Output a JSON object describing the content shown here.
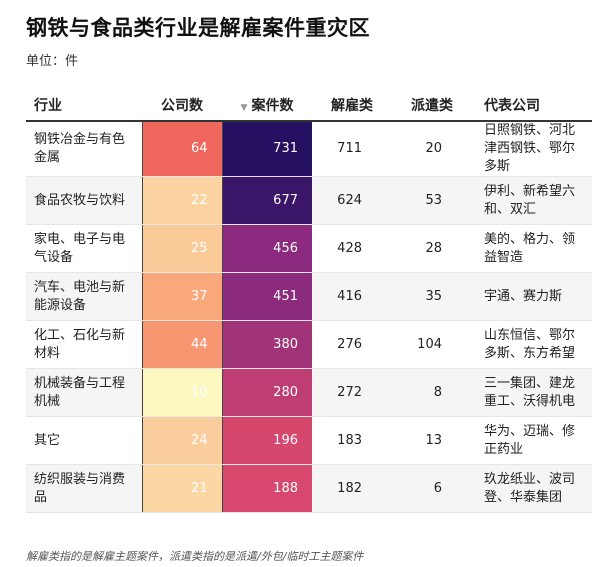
{
  "title": "钢铁与食品类行业是解雇案件重灾区",
  "subtitle": "单位：件",
  "footnote": "解雇类指的是解雇主题案件，派遣类指的是派遣/外包/临时工主题案件",
  "headers": {
    "industry": "行业",
    "companies": "公司数",
    "cases": "案件数",
    "dismissal": "解雇类",
    "dispatch": "派遣类",
    "rep": "代表公司",
    "sort_icon": "sort-down-icon"
  },
  "chart_data": {
    "type": "table",
    "title": "钢铁与食品类行业是解雇案件重灾区",
    "columns": [
      "行业",
      "公司数",
      "案件数",
      "解雇类",
      "派遣类",
      "代表公司"
    ],
    "sorted_by": "案件数",
    "sort_order": "descending",
    "rows": [
      {
        "industry": "钢铁冶金与有色金属",
        "companies": 64,
        "cases": 731,
        "dismissal": 711,
        "dispatch": 20,
        "rep": "日照钢铁、河北津西钢铁、鄂尔多斯"
      },
      {
        "industry": "食品农牧与饮料",
        "companies": 22,
        "cases": 677,
        "dismissal": 624,
        "dispatch": 53,
        "rep": "伊利、新希望六和、双汇"
      },
      {
        "industry": "家电、电子与电气设备",
        "companies": 25,
        "cases": 456,
        "dismissal": 428,
        "dispatch": 28,
        "rep": "美的、格力、领益智造"
      },
      {
        "industry": "汽车、电池与新能源设备",
        "companies": 37,
        "cases": 451,
        "dismissal": 416,
        "dispatch": 35,
        "rep": "宇通、赛力斯"
      },
      {
        "industry": "化工、石化与新材料",
        "companies": 44,
        "cases": 380,
        "dismissal": 276,
        "dispatch": 104,
        "rep": "山东恒信、鄂尔多斯、东方希望"
      },
      {
        "industry": "机械装备与工程机械",
        "companies": 10,
        "cases": 280,
        "dismissal": 272,
        "dispatch": 8,
        "rep": "三一集团、建龙重工、沃得机电"
      },
      {
        "industry": "其它",
        "companies": 24,
        "cases": 196,
        "dismissal": 183,
        "dispatch": 13,
        "rep": "华为、迈瑞、修正药业"
      },
      {
        "industry": "纺织服装与消费品",
        "companies": 21,
        "cases": 188,
        "dismissal": 182,
        "dispatch": 6,
        "rep": "玖龙纸业、波司登、华泰集团"
      }
    ],
    "color_scale": {
      "companies": {
        "low": "#fdf7c0",
        "mid": "#f8a87a",
        "high": "#f0675d"
      },
      "cases": {
        "low": "#d8486e",
        "mid": "#8a2a7e",
        "high": "#261062"
      }
    }
  }
}
